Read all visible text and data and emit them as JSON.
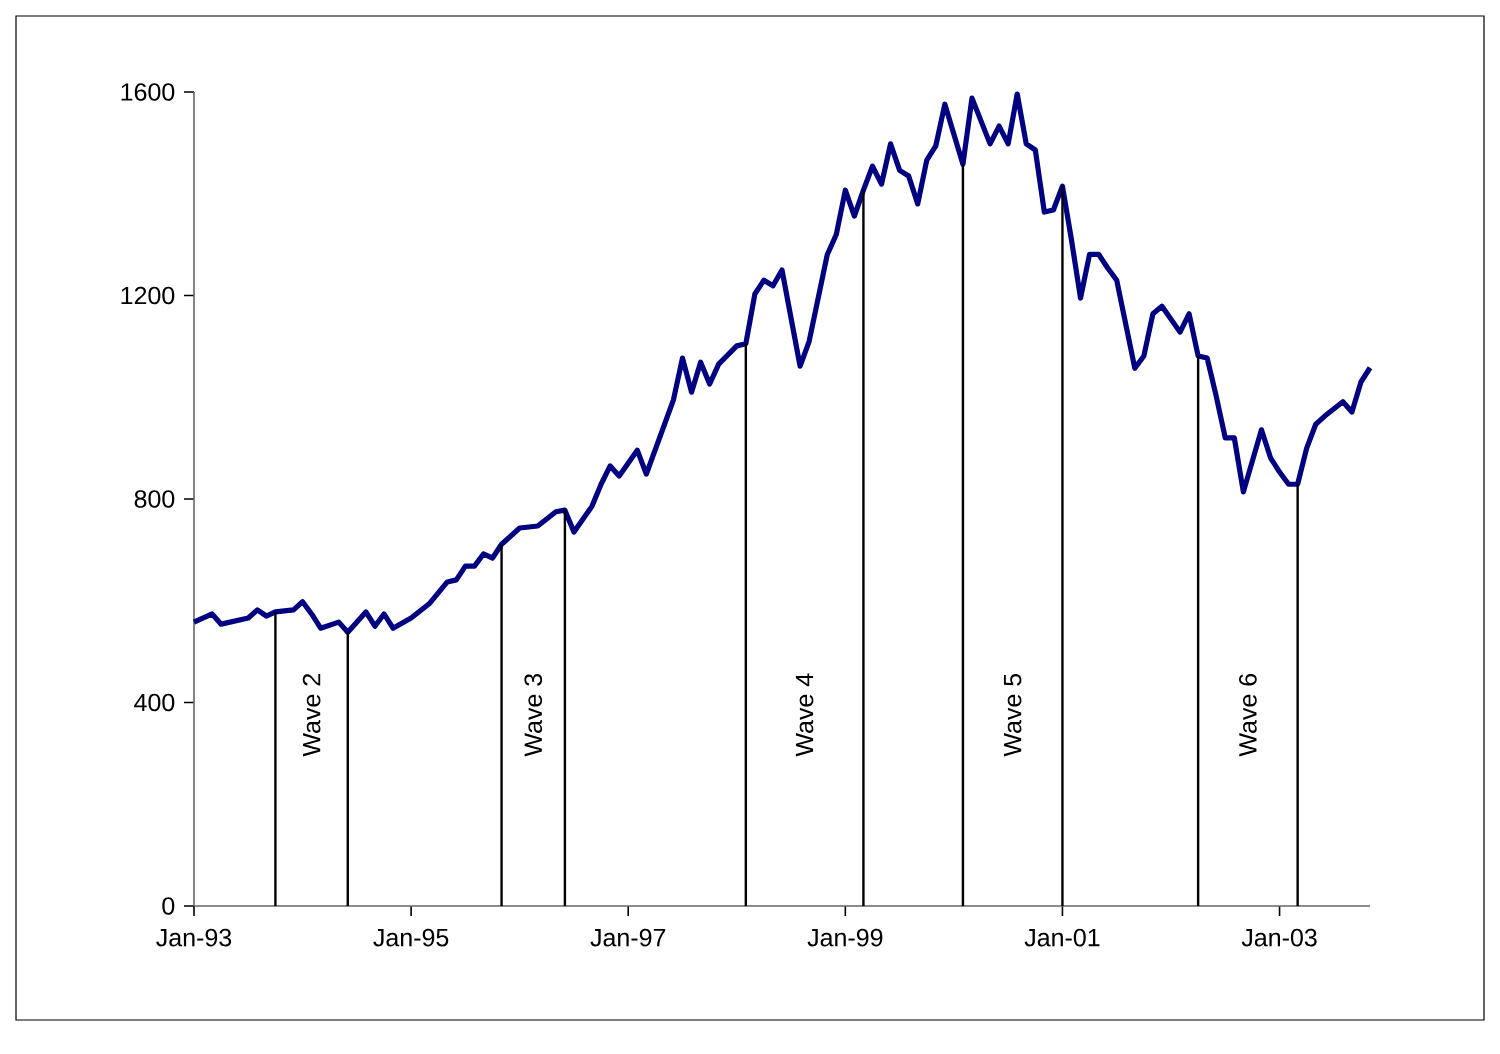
{
  "chart_data": {
    "type": "line",
    "x": [
      "1993-01",
      "1993-03",
      "1993-04",
      "1993-07",
      "1993-08",
      "1993-09",
      "1993-10",
      "1993-12",
      "1994-01",
      "1994-02",
      "1994-03",
      "1994-05",
      "1994-06",
      "1994-08",
      "1994-09",
      "1994-10",
      "1994-11",
      "1995-01",
      "1995-03",
      "1995-05",
      "1995-06",
      "1995-07",
      "1995-08",
      "1995-09",
      "1995-10",
      "1995-11",
      "1996-01",
      "1996-03",
      "1996-05",
      "1996-06",
      "1996-07",
      "1996-09",
      "1996-10",
      "1996-11",
      "1996-12",
      "1997-02",
      "1997-03",
      "1997-06",
      "1997-07",
      "1997-08",
      "1997-09",
      "1997-10",
      "1997-11",
      "1998-01",
      "1998-02",
      "1998-03",
      "1998-04",
      "1998-05",
      "1998-06",
      "1998-08",
      "1998-09",
      "1998-11",
      "1998-12",
      "1999-01",
      "1999-02",
      "1999-03",
      "1999-04",
      "1999-05",
      "1999-06",
      "1999-07",
      "1999-08",
      "1999-09",
      "1999-10",
      "1999-11",
      "1999-12",
      "2000-02",
      "2000-03",
      "2000-05",
      "2000-06",
      "2000-07",
      "2000-08",
      "2000-09",
      "2000-10",
      "2000-11",
      "2000-12",
      "2001-01",
      "2001-02",
      "2001-03",
      "2001-04",
      "2001-05",
      "2001-06",
      "2001-07",
      "2001-09",
      "2001-10",
      "2001-11",
      "2001-12",
      "2002-02",
      "2002-03",
      "2002-04",
      "2002-05",
      "2002-06",
      "2002-07",
      "2002-08",
      "2002-09",
      "2002-11",
      "2002-12",
      "2003-01",
      "2003-02",
      "2003-03",
      "2003-04",
      "2003-05",
      "2003-06",
      "2003-08",
      "2003-09",
      "2003-10",
      "2003-11"
    ],
    "series": [
      {
        "color": "#000080",
        "values": [
          558,
          574,
          554,
          566,
          582,
          570,
          578,
          582,
          598,
          574,
          546,
          558,
          538,
          578,
          550,
          574,
          546,
          566,
          594,
          637,
          641,
          668,
          668,
          692,
          684,
          711,
          743,
          747,
          775,
          778,
          735,
          786,
          829,
          865,
          845,
          896,
          849,
          995,
          1077,
          1010,
          1069,
          1026,
          1065,
          1101,
          1105,
          1203,
          1230,
          1219,
          1250,
          1061,
          1110,
          1280,
          1320,
          1407,
          1356,
          1407,
          1454,
          1419,
          1498,
          1446,
          1435,
          1380,
          1466,
          1494,
          1576,
          1458,
          1588,
          1498,
          1533,
          1498,
          1596,
          1498,
          1486,
          1364,
          1368,
          1415,
          1309,
          1195,
          1281,
          1281,
          1254,
          1230,
          1057,
          1081,
          1164,
          1179,
          1128,
          1164,
          1081,
          1077,
          1002,
          920,
          920,
          814,
          936,
          881,
          853,
          829,
          829,
          900,
          947,
          963,
          991,
          971,
          1030,
          1058
        ]
      }
    ],
    "xlim": [
      "1993-01",
      "2003-11"
    ],
    "xticks": [
      {
        "value": "1993-01",
        "label": "Jan-93"
      },
      {
        "value": "1995-01",
        "label": "Jan-95"
      },
      {
        "value": "1997-01",
        "label": "Jan-97"
      },
      {
        "value": "1999-01",
        "label": "Jan-99"
      },
      {
        "value": "2001-01",
        "label": "Jan-01"
      },
      {
        "value": "2003-01",
        "label": "Jan-03"
      }
    ],
    "ylim": [
      0,
      1600
    ],
    "yticks": [
      0,
      400,
      800,
      1200,
      1600
    ],
    "marker": "none",
    "line_style": "solid",
    "ref_lines": [
      {
        "axis": "x",
        "value": "1993-10"
      },
      {
        "axis": "x",
        "value": "1994-06"
      },
      {
        "axis": "x",
        "value": "1995-11"
      },
      {
        "axis": "x",
        "value": "1996-06"
      },
      {
        "axis": "x",
        "value": "1998-02"
      },
      {
        "axis": "x",
        "value": "1999-03"
      },
      {
        "axis": "x",
        "value": "2000-02"
      },
      {
        "axis": "x",
        "value": "2001-01"
      },
      {
        "axis": "x",
        "value": "2002-04"
      },
      {
        "axis": "x",
        "value": "2003-03"
      }
    ],
    "annotations": [
      "Wave 2",
      "Wave 3",
      "Wave 4",
      "Wave 5",
      "Wave 6"
    ]
  }
}
